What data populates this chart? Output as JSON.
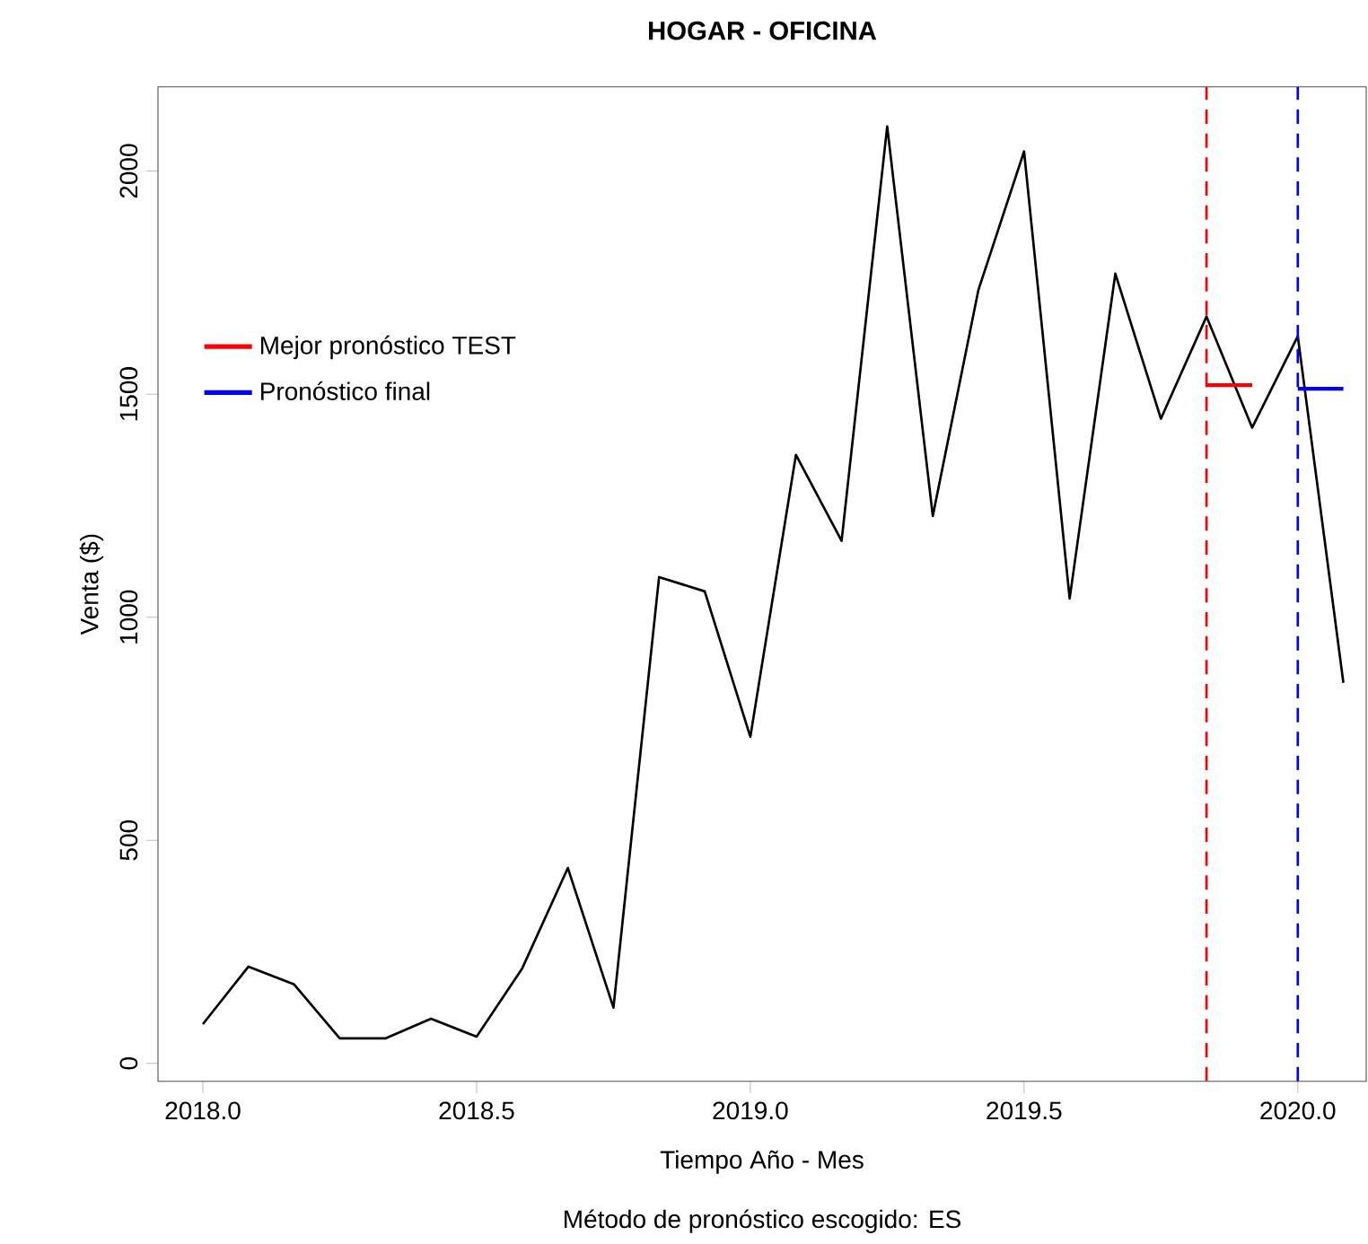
{
  "chart_data": {
    "type": "line",
    "title": "HOGAR - OFICINA",
    "xlabel": "Tiempo Año - Mes",
    "ylabel": "Venta ($)",
    "annotations": [
      "Método de pronóstico escogido: ES"
    ],
    "xlim": [
      2017.918,
      2020.125
    ],
    "ylim": [
      -40,
      2189
    ],
    "xticks": [
      {
        "value": 2018.0,
        "label": "2018.0"
      },
      {
        "value": 2018.5,
        "label": "2018.5"
      },
      {
        "value": 2019.0,
        "label": "2019.0"
      },
      {
        "value": 2019.5,
        "label": "2019.5"
      },
      {
        "value": 2020.0,
        "label": "2020.0"
      }
    ],
    "yticks": [
      0,
      500,
      1000,
      1500,
      2000
    ],
    "legend": "top left",
    "grid": false,
    "line_style": "solid",
    "series": [
      {
        "color": "#000000",
        "x": [
          2018.0,
          2018.0833,
          2018.1667,
          2018.25,
          2018.3333,
          2018.4167,
          2018.5,
          2018.5833,
          2018.6667,
          2018.75,
          2018.8333,
          2018.9167,
          2019.0,
          2019.0833,
          2019.1667,
          2019.25,
          2019.3333,
          2019.4167,
          2019.5,
          2019.5833,
          2019.6667,
          2019.75,
          2019.8333,
          2019.9167,
          2020.0,
          2020.0833
        ],
        "values": [
          88,
          217,
          177,
          56,
          56,
          100,
          60,
          213,
          438,
          125,
          1090,
          1058,
          732,
          1364,
          1171,
          2100,
          1227,
          1734,
          2044,
          1042,
          1770,
          1445,
          1674,
          1425,
          1630,
          853
        ]
      },
      {
        "name": "Mejor pronóstico TEST",
        "color": "#ff0000",
        "x": [
          2019.8333,
          2019.9167
        ],
        "values": [
          1520,
          1520
        ]
      },
      {
        "name": "Pronóstico final",
        "color": "#0000ff",
        "x": [
          2020.0,
          2020.0833
        ],
        "values": [
          1512,
          1512
        ]
      }
    ],
    "ref_lines": [
      {
        "axis": "x",
        "value": 2019.8333,
        "color": "#ff0000",
        "line_style": "dashed"
      },
      {
        "axis": "x",
        "value": 2020.0,
        "color": "#0000ff",
        "line_style": "dashed"
      }
    ]
  }
}
